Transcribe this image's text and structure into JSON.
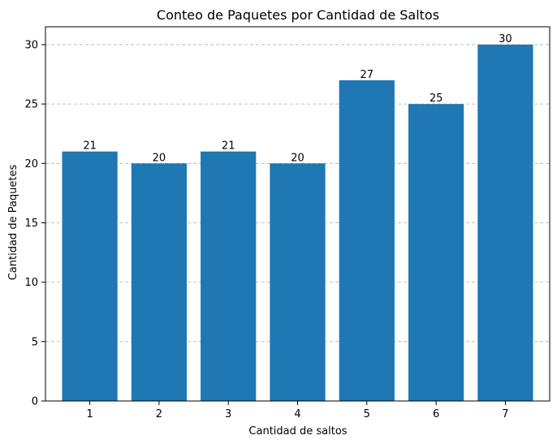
{
  "chart_data": {
    "type": "bar",
    "title": "Conteo de Paquetes por Cantidad de Saltos",
    "xlabel": "Cantidad de saltos",
    "ylabel": "Cantidad de Paquetes",
    "categories": [
      "1",
      "2",
      "3",
      "4",
      "5",
      "6",
      "7"
    ],
    "values": [
      21,
      20,
      21,
      20,
      27,
      25,
      30
    ],
    "ylim": [
      0,
      31.5
    ],
    "yticks": [
      0,
      5,
      10,
      15,
      20,
      25,
      30
    ],
    "grid": "y-axis dashed",
    "bar_color": "#1f77b4",
    "data_labels": true
  }
}
